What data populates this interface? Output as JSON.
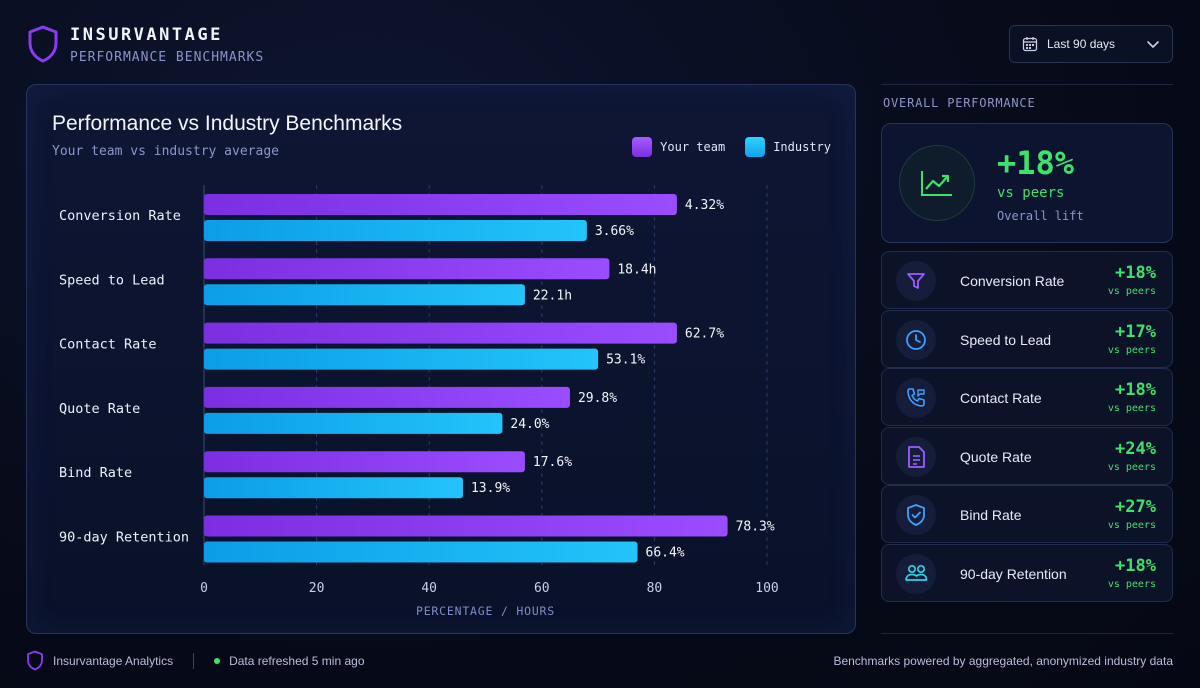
{
  "brand": {
    "name": "INSURVANTAGE",
    "subtitle": "PERFORMANCE BENCHMARKS"
  },
  "date_filter": {
    "label": "Last 90 days"
  },
  "chart_card": {
    "title": "Performance vs Industry Benchmarks",
    "subtitle": "Your team vs industry average",
    "legend": [
      {
        "label": "Your team",
        "color": "#8b3cf0"
      },
      {
        "label": "Industry",
        "color": "#16b8f4"
      }
    ]
  },
  "chart_data": {
    "type": "bar",
    "orientation": "horizontal",
    "title": "Performance vs Industry Benchmarks",
    "subtitle": "Your team vs industry average",
    "xlabel": "PERCENTAGE / HOURS",
    "ylabel": "",
    "xlim": [
      0,
      100
    ],
    "x_ticks": [
      0,
      20,
      40,
      60,
      80,
      100
    ],
    "grid": true,
    "legend_position": "top-right",
    "categories": [
      "Conversion Rate",
      "Speed to Lead",
      "Contact Rate",
      "Quote Rate",
      "Bind Rate",
      "90-day Retention"
    ],
    "series": [
      {
        "name": "Your team",
        "color": "#8b3cf0",
        "values": [
          84,
          72,
          84,
          65,
          57,
          93
        ],
        "labels": [
          "4.32%",
          "18.4h",
          "62.7%",
          "29.8%",
          "17.6%",
          "78.3%"
        ]
      },
      {
        "name": "Industry",
        "color": "#16b8f4",
        "values": [
          68,
          57,
          70,
          53,
          46,
          77
        ],
        "labels": [
          "3.66%",
          "22.1h",
          "53.1%",
          "24.0%",
          "13.9%",
          "66.4%"
        ]
      }
    ]
  },
  "overall": {
    "section_title": "OVERALL PERFORMANCE",
    "value": "+18%",
    "sub": "vs peers",
    "note": "Overall lift",
    "icon": "trend-up-icon"
  },
  "metrics": [
    {
      "label": "Conversion Rate",
      "value": "+18%",
      "sub": "vs peers",
      "icon": "funnel-icon",
      "icon_color": "#a05cff"
    },
    {
      "label": "Speed to Lead",
      "value": "+17%",
      "sub": "vs peers",
      "icon": "clock-icon",
      "icon_color": "#3aa2ff"
    },
    {
      "label": "Contact Rate",
      "value": "+18%",
      "sub": "vs peers",
      "icon": "phone-icon",
      "icon_color": "#3aa2ff"
    },
    {
      "label": "Quote Rate",
      "value": "+24%",
      "sub": "vs peers",
      "icon": "document-icon",
      "icon_color": "#a05cff"
    },
    {
      "label": "Bind Rate",
      "value": "+27%",
      "sub": "vs peers",
      "icon": "shield-check-icon",
      "icon_color": "#3aa2ff"
    },
    {
      "label": "90-day Retention",
      "value": "+18%",
      "sub": "vs peers",
      "icon": "users-icon",
      "icon_color": "#2ed2e0"
    }
  ],
  "footer": {
    "brand": "Insurvantage Analytics",
    "status": "Data refreshed 5 min ago",
    "note": "Benchmarks powered by aggregated, anonymized industry data"
  },
  "colors": {
    "accent_green": "#3ee26a",
    "muted_text": "#8d96c8",
    "grid": "#2a3a66"
  }
}
